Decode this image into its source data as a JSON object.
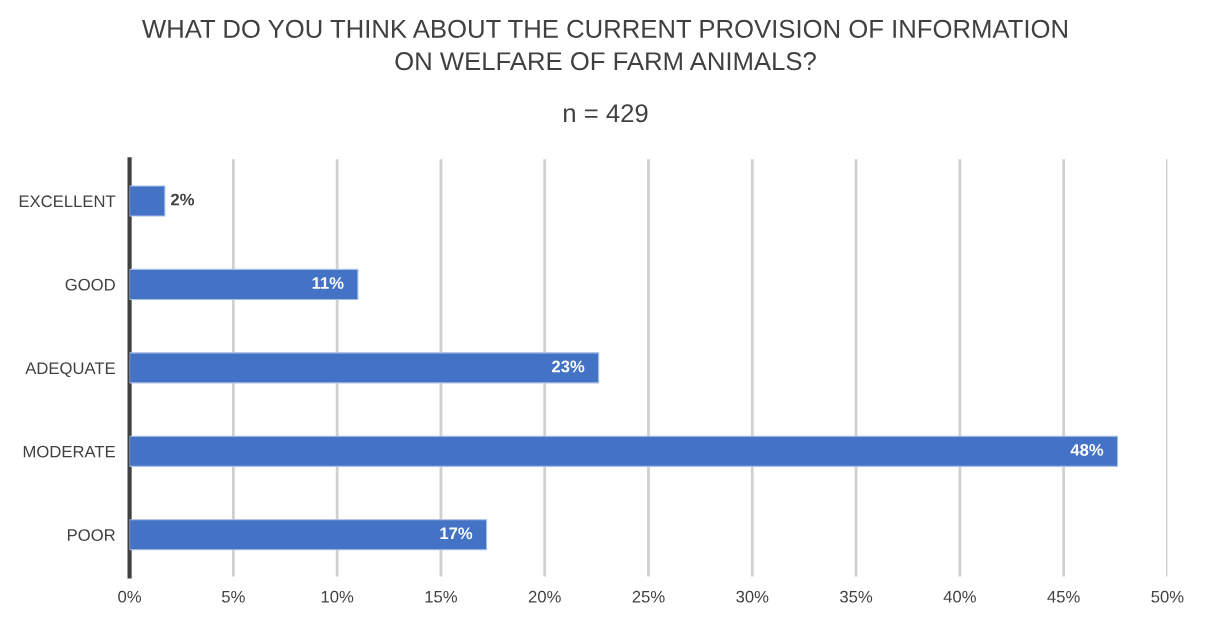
{
  "chart_data": {
    "type": "bar",
    "orientation": "horizontal",
    "title": "WHAT DO YOU THINK ABOUT THE CURRENT PROVISION OF INFORMATION\nON WELFARE OF FARM ANIMALS?",
    "subtitle": "n = 429",
    "categories": [
      "EXCELLENT",
      "GOOD",
      "ADEQUATE",
      "MODERATE",
      "POOR"
    ],
    "values": [
      1.7,
      11.0,
      22.6,
      47.6,
      17.2
    ],
    "value_labels": [
      "2%",
      "11%",
      "23%",
      "48%",
      "17%"
    ],
    "color": "#4472c4",
    "xlim": [
      0,
      50
    ],
    "xticks": [
      {
        "value": 0,
        "label": "0%"
      },
      {
        "value": 5,
        "label": "5%"
      },
      {
        "value": 10,
        "label": "10%"
      },
      {
        "value": 15,
        "label": "15%"
      },
      {
        "value": 20,
        "label": "20%"
      },
      {
        "value": 25,
        "label": "25%"
      },
      {
        "value": 30,
        "label": "30%"
      },
      {
        "value": 35,
        "label": "35%"
      },
      {
        "value": 40,
        "label": "40%"
      },
      {
        "value": 45,
        "label": "45%"
      },
      {
        "value": 50,
        "label": "50%"
      }
    ],
    "grid": "x"
  }
}
